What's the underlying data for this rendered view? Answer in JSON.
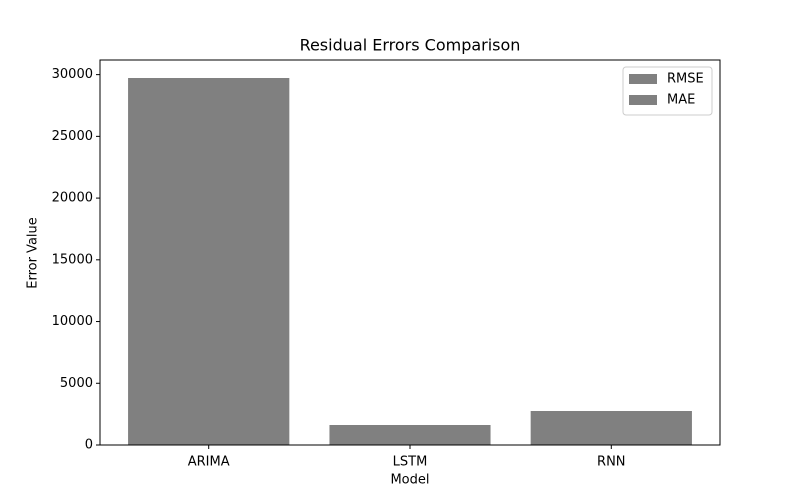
{
  "chart_data": {
    "type": "bar",
    "title": "Residual Errors Comparison",
    "x_label": "Model",
    "y_label": "Error Value",
    "categories": [
      "ARIMA",
      "LSTM",
      "RNN"
    ],
    "series": [
      {
        "name": "RMSE",
        "color": "#808080",
        "values": [
          29727,
          1620,
          2754
        ]
      },
      {
        "name": "MAE",
        "color": "#808080",
        "values": [
          29727,
          1620,
          2754
        ]
      }
    ],
    "ylim": [
      0,
      31185
    ],
    "yticks": [
      0,
      5000,
      10000,
      15000,
      20000,
      25000,
      30000
    ],
    "legend": "upper right"
  }
}
